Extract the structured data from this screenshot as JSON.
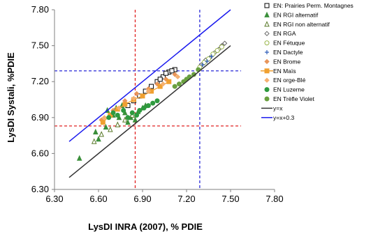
{
  "chart_data": {
    "type": "scatter",
    "xlabel": "LysDI INRA (2007), % PDIE",
    "ylabel": "LysDI Systali, %PDIE",
    "xlim": [
      6.3,
      7.8
    ],
    "ylim": [
      6.3,
      7.8
    ],
    "xticks": [
      "6.30",
      "6.60",
      "6.90",
      "7.20",
      "7.50",
      "7.80"
    ],
    "yticks": [
      "6.30",
      "6.60",
      "6.90",
      "7.20",
      "7.50",
      "7.80"
    ],
    "grid": false,
    "legend_position": "right",
    "series": [
      {
        "name": "EN: Prairies Perm. Montagnes",
        "marker": "square-open",
        "color": "#000000",
        "points": [
          [
            6.8,
            7.0
          ],
          [
            6.84,
            7.04
          ],
          [
            6.88,
            7.08
          ],
          [
            6.92,
            7.12
          ],
          [
            6.96,
            7.16
          ],
          [
            7.0,
            7.2
          ],
          [
            7.04,
            7.24
          ],
          [
            7.08,
            7.28
          ],
          [
            7.12,
            7.3
          ],
          [
            7.02,
            7.22
          ],
          [
            7.06,
            7.27
          ],
          [
            7.1,
            7.29
          ]
        ]
      },
      {
        "name": "EN RGI alternatif",
        "marker": "triangle",
        "color": "#3a8f3a",
        "points": [
          [
            6.47,
            6.56
          ],
          [
            6.58,
            6.78
          ],
          [
            6.6,
            6.72
          ],
          [
            6.65,
            6.82
          ],
          [
            6.66,
            6.96
          ],
          [
            6.7,
            6.92
          ],
          [
            6.72,
            6.98
          ],
          [
            6.74,
            6.9
          ],
          [
            6.76,
            7.0
          ],
          [
            6.78,
            6.94
          ],
          [
            6.8,
            6.86
          ],
          [
            6.82,
            6.9
          ],
          [
            6.85,
            6.88
          ],
          [
            6.87,
            6.95
          ],
          [
            6.9,
            6.98
          ],
          [
            6.92,
            7.0
          ]
        ]
      },
      {
        "name": "EN RGI non alternatif",
        "marker": "triangle-open",
        "color": "#5a7a2a",
        "points": [
          [
            6.57,
            6.7
          ],
          [
            6.62,
            6.76
          ],
          [
            6.68,
            6.8
          ],
          [
            6.73,
            6.84
          ],
          [
            6.78,
            6.88
          ],
          [
            6.83,
            6.92
          ]
        ]
      },
      {
        "name": "EN RGA",
        "marker": "diamond-open",
        "color": "#666666",
        "points": [
          [
            7.3,
            7.34
          ],
          [
            7.33,
            7.38
          ],
          [
            7.36,
            7.4
          ],
          [
            7.39,
            7.44
          ],
          [
            7.42,
            7.47
          ],
          [
            7.44,
            7.5
          ],
          [
            7.46,
            7.52
          ]
        ]
      },
      {
        "name": "EN Fétuque",
        "marker": "circle-open",
        "color": "#9ab64a",
        "points": [
          [
            7.29,
            7.32
          ],
          [
            7.32,
            7.36
          ],
          [
            7.35,
            7.39
          ],
          [
            7.38,
            7.43
          ],
          [
            7.41,
            7.46
          ],
          [
            7.44,
            7.49
          ]
        ]
      },
      {
        "name": "EN Dactyle",
        "marker": "plus",
        "color": "#2a5ab8",
        "points": [
          [
            7.28,
            7.3
          ],
          [
            7.31,
            7.34
          ],
          [
            7.34,
            7.37
          ],
          [
            7.37,
            7.41
          ]
        ]
      },
      {
        "name": "EN Brome",
        "marker": "diamond",
        "color": "#e8955a",
        "points": [
          [
            6.62,
            6.88
          ],
          [
            6.7,
            6.96
          ],
          [
            6.78,
            7.04
          ],
          [
            6.86,
            7.1
          ],
          [
            6.94,
            7.14
          ],
          [
            7.0,
            7.18
          ],
          [
            7.06,
            7.22
          ],
          [
            7.12,
            7.26
          ]
        ]
      },
      {
        "name": "EN Maïs",
        "marker": "square-line",
        "color": "#f0a030",
        "points": [
          [
            6.63,
            6.86
          ],
          [
            6.68,
            6.92
          ],
          [
            6.73,
            6.97
          ],
          [
            6.78,
            7.01
          ],
          [
            6.84,
            7.05
          ],
          [
            6.9,
            7.08
          ],
          [
            6.96,
            7.12
          ],
          [
            7.02,
            7.16
          ],
          [
            7.08,
            7.2
          ]
        ]
      },
      {
        "name": "EN orge-Blé",
        "marker": "diamond",
        "color": "#f5b070",
        "points": [
          [
            6.64,
            6.9
          ],
          [
            6.74,
            6.98
          ],
          [
            6.84,
            7.06
          ],
          [
            6.94,
            7.12
          ],
          [
            7.04,
            7.18
          ],
          [
            7.14,
            7.24
          ]
        ]
      },
      {
        "name": "EN Luzerne",
        "marker": "circle",
        "color": "#2e9a3e",
        "points": [
          [
            6.67,
            6.9
          ],
          [
            6.7,
            6.94
          ],
          [
            6.73,
            6.92
          ],
          [
            6.77,
            6.96
          ],
          [
            6.8,
            6.9
          ],
          [
            6.83,
            6.94
          ],
          [
            6.86,
            6.92
          ],
          [
            6.88,
            6.96
          ],
          [
            6.91,
            6.98
          ],
          [
            6.94,
            7.0
          ],
          [
            6.97,
            7.02
          ],
          [
            7.0,
            7.04
          ]
        ]
      },
      {
        "name": "EN Trèfle Violet",
        "marker": "circle",
        "color": "#6aa040",
        "points": [
          [
            7.12,
            7.16
          ],
          [
            7.15,
            7.18
          ],
          [
            7.18,
            7.2
          ],
          [
            7.2,
            7.22
          ],
          [
            7.22,
            7.24
          ],
          [
            7.25,
            7.26
          ],
          [
            7.28,
            7.3
          ]
        ]
      },
      {
        "name": "y=x",
        "line": true,
        "color": "#333333",
        "points": [
          [
            6.4,
            6.4
          ],
          [
            7.5,
            7.5
          ]
        ]
      },
      {
        "name": "y=x+0.3",
        "line": true,
        "color": "#1a1aee",
        "points": [
          [
            6.4,
            6.7
          ],
          [
            7.5,
            7.8
          ]
        ]
      }
    ],
    "reference_lines": [
      {
        "orientation": "vertical",
        "value": 6.85,
        "color": "#e02020",
        "dash": true
      },
      {
        "orientation": "vertical",
        "value": 7.29,
        "color": "#2a2ad8",
        "dash": true
      },
      {
        "orientation": "horizontal",
        "value": 6.83,
        "color": "#e02020",
        "dash": true
      },
      {
        "orientation": "horizontal",
        "value": 7.29,
        "color": "#2a2ad8",
        "dash": true
      }
    ]
  }
}
